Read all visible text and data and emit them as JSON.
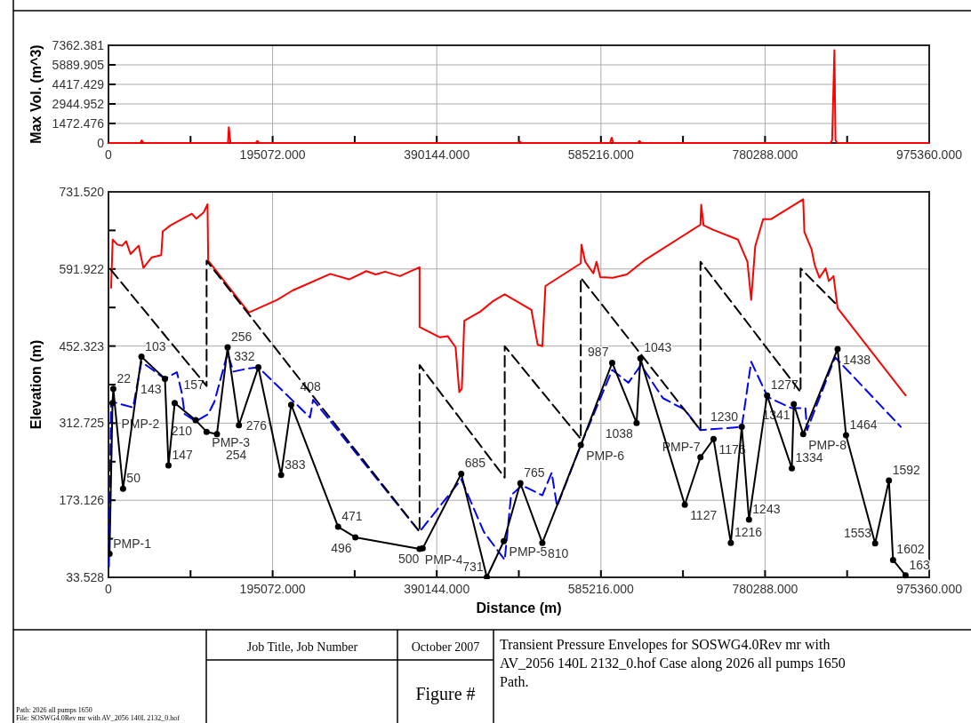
{
  "chart_data": [
    {
      "type": "line",
      "ylabel": "Max Vol. (m^3)",
      "xlim": [
        0,
        975360
      ],
      "ylim": [
        0,
        7362.381
      ],
      "grid": true,
      "marker": "none",
      "line_style": "solid",
      "xticks": [
        0,
        {
          "value": 97536,
          "label": null
        },
        {
          "value": 195072,
          "label": "195072.000"
        },
        {
          "value": 292608,
          "label": null
        },
        {
          "value": 390144,
          "label": "390144.000"
        },
        {
          "value": 487680,
          "label": null
        },
        {
          "value": 585216,
          "label": "585216.000"
        },
        {
          "value": 682752,
          "label": null
        },
        {
          "value": 780288,
          "label": "780288.000"
        },
        {
          "value": 877824,
          "label": null
        },
        {
          "value": 975360,
          "label": "975360.000"
        }
      ],
      "yticks": [
        0,
        1472.476,
        2944.952,
        4417.429,
        5889.905,
        7362.381
      ],
      "series": [
        {
          "color": "#ff0000",
          "x": [
            0,
            38000,
            39600,
            41500,
            142000,
            143000,
            145000,
            175000,
            177000,
            179000,
            487000,
            489000,
            491000,
            596000,
            598000,
            600000,
            629000,
            631000,
            633000,
            858000,
            860000,
            862700,
            864000,
            866000,
            975360
          ],
          "values": [
            0,
            0,
            200,
            0,
            0,
            1180,
            0,
            0,
            150,
            0,
            0,
            100,
            0,
            0,
            400,
            0,
            0,
            150,
            0,
            0,
            200,
            7000,
            200,
            0,
            0
          ]
        }
      ]
    },
    {
      "type": "line",
      "xlabel": "Distance (m)",
      "ylabel": "Elevation (m)",
      "xlim": [
        0,
        975360
      ],
      "ylim": [
        33.528,
        731.52
      ],
      "grid": true,
      "marker": "none",
      "line_style": "solid",
      "xticks": [
        0,
        {
          "value": 97536,
          "label": null
        },
        {
          "value": 195072,
          "label": "195072.000"
        },
        {
          "value": 292608,
          "label": null
        },
        {
          "value": 390144,
          "label": "390144.000"
        },
        {
          "value": 487680,
          "label": null
        },
        {
          "value": 585216,
          "label": "585216.000"
        },
        {
          "value": 682752,
          "label": null
        },
        {
          "value": 780288,
          "label": "780288.000"
        },
        {
          "value": 877824,
          "label": null
        },
        {
          "value": 975360,
          "label": "975360.000"
        }
      ],
      "yticks": [
        33.528,
        {
          "value": 103.327,
          "label": null
        },
        173.126,
        {
          "value": 242.926,
          "label": null
        },
        312.725,
        {
          "value": 382.524,
          "label": null
        },
        452.323,
        {
          "value": 522.123,
          "label": null
        },
        591.922,
        {
          "value": 661.721,
          "label": null
        },
        {
          "value": 731.52,
          "label": "731.520"
        }
      ],
      "series": [
        {
          "color": "#ff0000",
          "x": [
            3100,
            5000,
            10500,
            16200,
            21000,
            26200,
            35900,
            41500,
            51500,
            62700,
            64500,
            73900,
            99100,
            104300,
            113000,
            117700,
            118500,
            166800,
            200400,
            218900,
            263600,
            286000,
            306400,
            317600,
            328800,
            346300,
            369700,
            369700,
            393900,
            403200,
            412500,
            416900,
            419900,
            422900,
            442200,
            456400,
            470900,
            502600,
            510000,
            515600,
            519300,
            561300,
            562100,
            566600,
            576200,
            580000,
            584400,
            599300,
            616000,
            636500,
            703500,
            704400,
            707200,
            718300,
            748100,
            759300,
            763800,
            768600,
            778000,
            787200,
            825600,
            827000,
            835600,
            839300,
            844900,
            852300,
            856100,
            861700,
            866500,
            947300
          ],
          "values": [
            558,
            645,
            636,
            634,
            642,
            619,
            634,
            594,
            613,
            617,
            660,
            671,
            692,
            683,
            694,
            709,
            607,
            513,
            536,
            553,
            583,
            573,
            588,
            582,
            587,
            579,
            595,
            487,
            468,
            470,
            450,
            369,
            375,
            498,
            515,
            533,
            546,
            518,
            455,
            452,
            561,
            602,
            636,
            605,
            584,
            605,
            577,
            576,
            582,
            607,
            672,
            708,
            671,
            663,
            645,
            605,
            536,
            633,
            682,
            682,
            718,
            659,
            627,
            599,
            576,
            593,
            570,
            579,
            521,
            363
          ]
        },
        {
          "color": "#0000ff",
          "line_style": "dashed",
          "x": [
            500,
            3100,
            29200,
            39200,
            67100,
            81300,
            86900,
            90600,
            103600,
            118500,
            126000,
            141600,
            148300,
            166800,
            178100,
            239500,
            243200,
            369700,
            419200,
            446000,
            470900,
            478400,
            491400,
            515600,
            526700,
            533100,
            561300,
            598600,
            617900,
            632800,
            658900,
            684900,
            703500,
            752600,
            763800,
            783500,
            811400,
            828200,
            830200,
            863500,
            941600
          ],
          "values": [
            53,
            352,
            341,
            424,
            393,
            405,
            369,
            329,
            316,
            329,
            352,
            440,
            406,
            412,
            414,
            323,
            355,
            116,
            211,
            116,
            65,
            182,
            200,
            182,
            223,
            162,
            273,
            409,
            386,
            418,
            358,
            337,
            300,
            306,
            424,
            360,
            340,
            340,
            300,
            432,
            306
          ]
        },
        {
          "color": "#000000",
          "line_style": "dashed",
          "x": [
            3100,
            116600,
            116600,
            369700,
            369700,
            470900,
            470900,
            561300,
            561300,
            703500,
            703500,
            822500,
            822500,
            863500
          ],
          "values": [
            590,
            380,
            607,
            116,
            418,
            214,
            452,
            284,
            576,
            300,
            605,
            369,
            593,
            530
          ]
        },
        {
          "color": "#000000",
          "marker": "circle",
          "x": [
            1250,
            4800,
            5730,
            17300,
            39200,
            67100,
            71300,
            78700,
            103600,
            116600,
            128900,
            141600,
            155000,
            178100,
            205200,
            217100,
            272900,
            293400,
            369700,
            373400,
            419200,
            449700,
            469800,
            489500,
            515600,
            561300,
            598600,
            627600,
            632100,
            684900,
            703500,
            719100,
            739600,
            752600,
            761200,
            782700,
            812100,
            814400,
            825600,
            866500,
            876500,
            911100,
            927500,
            932400,
            947300
          ],
          "values": [
            76,
            349,
            375,
            194,
            433,
            393,
            236,
            349,
            318,
            297,
            293,
            450,
            309,
            414,
            219,
            346,
            125,
            106,
            85,
            86,
            221,
            34,
            99,
            204,
            96,
            273,
            422,
            313,
            430,
            165,
            251,
            284,
            96,
            306,
            138,
            363,
            231,
            347,
            293,
            447,
            291,
            95,
            209,
            65,
            37
          ]
        }
      ],
      "annotations": [
        "Job Title, Job Number",
        "October 2007",
        "Figure #",
        "Transient Pressure Envelopes for SOSWG4.0Rev mr with AV_2056 140L 2132_0.hof Case along 2026 all pumps 1650 Path.",
        "Path: 2026 all pumps 1650",
        "File: SOSWG4.0Rev mr with AV_2056 140L 2132_0.hof",
        {
          "text": "PMP-1",
          "x": 1250,
          "y": 76
        },
        {
          "text": "PMP-2",
          "x": 4800,
          "y": 349
        },
        {
          "text": "22",
          "x": 5730,
          "y": 375
        },
        {
          "text": "50",
          "x": 17300,
          "y": 194
        },
        {
          "text": "103",
          "x": 39200,
          "y": 433
        },
        {
          "text": "143",
          "x": 67100,
          "y": 393
        },
        {
          "text": "147",
          "x": 71300,
          "y": 236
        },
        {
          "text": "157",
          "x": 78700,
          "y": 349
        },
        {
          "text": "210",
          "x": 103600,
          "y": 318
        },
        {
          "text": "PMP-3",
          "x": 116600,
          "y": 297
        },
        {
          "text": "254",
          "x": 128900,
          "y": 293
        },
        {
          "text": "256",
          "x": 141600,
          "y": 450
        },
        {
          "text": "276",
          "x": 155000,
          "y": 309
        },
        {
          "text": "332",
          "x": 178100,
          "y": 414
        },
        {
          "text": "383",
          "x": 205200,
          "y": 219
        },
        {
          "text": "408",
          "x": 217100,
          "y": 346
        },
        {
          "text": "471",
          "x": 272900,
          "y": 125
        },
        {
          "text": "496",
          "x": 293400,
          "y": 106
        },
        {
          "text": "PMP-4",
          "x": 369700,
          "y": 85
        },
        {
          "text": "500",
          "x": 373400,
          "y": 86
        },
        {
          "text": "685",
          "x": 419200,
          "y": 221
        },
        {
          "text": "731",
          "x": 449700,
          "y": 34
        },
        {
          "text": "PMP-5",
          "x": 469800,
          "y": 99
        },
        {
          "text": "765",
          "x": 489500,
          "y": 204
        },
        {
          "text": "810",
          "x": 515600,
          "y": 96
        },
        {
          "text": "PMP-6",
          "x": 561300,
          "y": 273
        },
        {
          "text": "987",
          "x": 598600,
          "y": 422
        },
        {
          "text": "1038",
          "x": 627600,
          "y": 313
        },
        {
          "text": "1043",
          "x": 632100,
          "y": 430
        },
        {
          "text": "1127",
          "x": 684900,
          "y": 165
        },
        {
          "text": "PMP-7",
          "x": 703500,
          "y": 251
        },
        {
          "text": "1176",
          "x": 719100,
          "y": 284
        },
        {
          "text": "1216",
          "x": 739600,
          "y": 96
        },
        {
          "text": "1230",
          "x": 752600,
          "y": 306
        },
        {
          "text": "1243",
          "x": 761200,
          "y": 138
        },
        {
          "text": "1277",
          "x": 782700,
          "y": 363
        },
        {
          "text": "1334",
          "x": 812100,
          "y": 231
        },
        {
          "text": "1341",
          "x": 814400,
          "y": 347
        },
        {
          "text": "PMP-8",
          "x": 825600,
          "y": 293
        },
        {
          "text": "1438",
          "x": 866500,
          "y": 447
        },
        {
          "text": "1464",
          "x": 876500,
          "y": 291
        },
        {
          "text": "1553",
          "x": 911100,
          "y": 95
        },
        {
          "text": "1592",
          "x": 927500,
          "y": 209
        },
        {
          "text": "1602",
          "x": 932400,
          "y": 65
        },
        {
          "text": "163",
          "x": 947300,
          "y": 37
        }
      ]
    }
  ]
}
